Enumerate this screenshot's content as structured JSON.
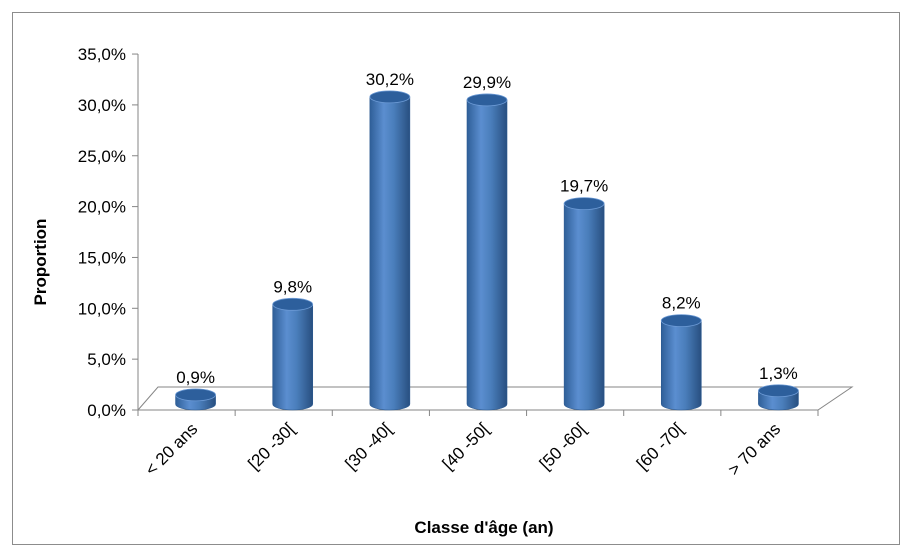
{
  "chart_data": {
    "type": "bar",
    "title": "",
    "xlabel": "Classe d'âge (an)",
    "ylabel": "Proportion",
    "categories": [
      "< 20 ans",
      "[20 -30[",
      "[30 -40[",
      "[40 -50[",
      "[50 -60[",
      "[60 -70[",
      "> 70 ans"
    ],
    "values": [
      0.9,
      9.8,
      30.2,
      29.9,
      19.7,
      8.2,
      1.3
    ],
    "value_labels": [
      "0,9%",
      "9,8%",
      "30,2%",
      "29,9%",
      "19,7%",
      "8,2%",
      "1,3%"
    ],
    "ylim": [
      0,
      35
    ],
    "yticks": [
      0,
      5,
      10,
      15,
      20,
      25,
      30,
      35
    ],
    "ytick_labels": [
      "0,0%",
      "5,0%",
      "10,0%",
      "15,0%",
      "20,0%",
      "25,0%",
      "30,0%",
      "35,0%"
    ],
    "grid": false,
    "legend": "none",
    "style": "3d-cylinder",
    "colors": {
      "bar": "#4a7ebb",
      "bar_dark": "#2c5a91",
      "bar_light": "#6d9bd6",
      "axis": "#868686"
    }
  }
}
